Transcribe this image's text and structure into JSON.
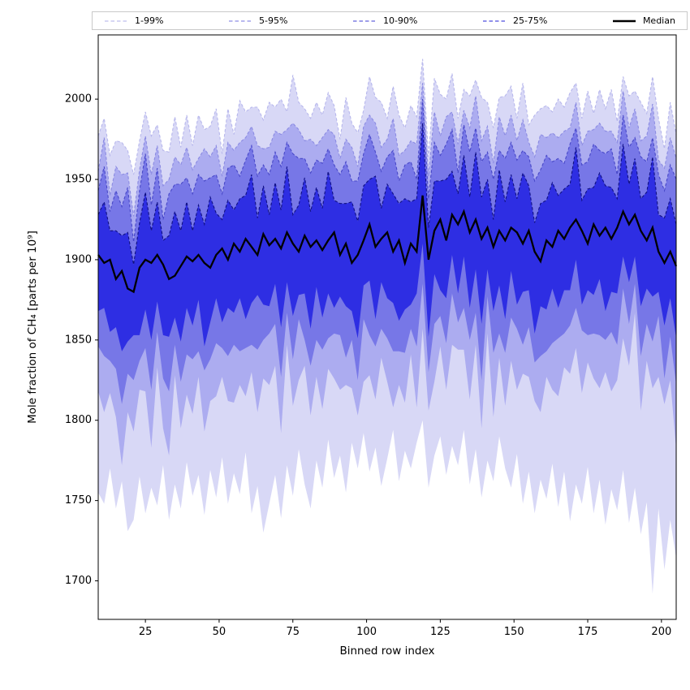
{
  "chart_data": {
    "type": "area",
    "title": "",
    "xlabel": "Binned row index",
    "ylabel": "Mole fraction of CH₄ [parts per 10⁹]",
    "xlim": [
      9,
      205
    ],
    "ylim": [
      1676,
      2040
    ],
    "xticks": [
      25,
      50,
      75,
      100,
      125,
      150,
      175,
      200
    ],
    "yticks": [
      1700,
      1750,
      1800,
      1850,
      1900,
      1950,
      2000
    ],
    "grid": false,
    "legend_position": "top",
    "x": [
      9,
      11,
      13,
      15,
      17,
      19,
      21,
      23,
      25,
      27,
      29,
      31,
      33,
      35,
      37,
      39,
      41,
      43,
      45,
      47,
      49,
      51,
      53,
      55,
      57,
      59,
      61,
      63,
      65,
      67,
      69,
      71,
      73,
      75,
      77,
      79,
      81,
      83,
      85,
      87,
      89,
      91,
      93,
      95,
      97,
      99,
      101,
      103,
      105,
      107,
      109,
      111,
      113,
      115,
      117,
      119,
      121,
      123,
      125,
      127,
      129,
      131,
      133,
      135,
      137,
      139,
      141,
      143,
      145,
      147,
      149,
      151,
      153,
      155,
      157,
      159,
      161,
      163,
      165,
      167,
      169,
      171,
      173,
      175,
      177,
      179,
      181,
      183,
      185,
      187,
      189,
      191,
      193,
      195,
      197,
      199,
      201,
      203,
      205
    ],
    "bands": [
      {
        "label": "1-99%",
        "lower": "p1",
        "upper": "p99",
        "fill": "#d8d8f6",
        "edge": "#b7b7ec",
        "legend_color": "#c8c8f0"
      },
      {
        "label": "5-95%",
        "lower": "p5",
        "upper": "p95",
        "fill": "#acacf0",
        "edge": "#8b8be2",
        "legend_color": "#a2a2ea"
      },
      {
        "label": "10-90%",
        "lower": "p10",
        "upper": "p90",
        "fill": "#7777e7",
        "edge": "#4848c8",
        "legend_color": "#7e7ee2"
      },
      {
        "label": "25-75%",
        "lower": "p25",
        "upper": "p75",
        "fill": "#2e2ee3",
        "edge": "#111183",
        "legend_color": "#6c6ce4"
      }
    ],
    "median_line": {
      "label": "Median",
      "series": "median",
      "color": "#000000",
      "linewidth": 2.3
    },
    "series": [
      {
        "name": "p1",
        "values": [
          1755,
          1748,
          1770,
          1745,
          1762,
          1731,
          1738,
          1765,
          1742,
          1758,
          1747,
          1772,
          1738,
          1760,
          1745,
          1774,
          1753,
          1766,
          1741,
          1769,
          1752,
          1777,
          1748,
          1767,
          1754,
          1780,
          1742,
          1759,
          1730,
          1748,
          1766,
          1739,
          1772,
          1753,
          1782,
          1760,
          1745,
          1775,
          1758,
          1788,
          1764,
          1778,
          1755,
          1786,
          1770,
          1792,
          1768,
          1783,
          1759,
          1776,
          1794,
          1762,
          1781,
          1770,
          1786,
          1800,
          1758,
          1778,
          1790,
          1766,
          1784,
          1772,
          1794,
          1760,
          1782,
          1752,
          1775,
          1762,
          1790,
          1770,
          1758,
          1779,
          1748,
          1768,
          1742,
          1763,
          1751,
          1773,
          1746,
          1768,
          1737,
          1760,
          1748,
          1771,
          1742,
          1763,
          1735,
          1757,
          1744,
          1769,
          1736,
          1758,
          1729,
          1749,
          1692,
          1745,
          1707,
          1738,
          1714
        ]
      },
      {
        "name": "p5",
        "values": [
          1818,
          1805,
          1817,
          1802,
          1772,
          1805,
          1793,
          1819,
          1818,
          1783,
          1833,
          1795,
          1778,
          1828,
          1795,
          1816,
          1804,
          1827,
          1793,
          1812,
          1815,
          1827,
          1812,
          1811,
          1822,
          1815,
          1830,
          1805,
          1826,
          1822,
          1834,
          1792,
          1847,
          1809,
          1825,
          1834,
          1803,
          1827,
          1807,
          1832,
          1826,
          1819,
          1822,
          1820,
          1803,
          1824,
          1828,
          1813,
          1839,
          1824,
          1808,
          1822,
          1811,
          1841,
          1808,
          1857,
          1806,
          1824,
          1846,
          1819,
          1847,
          1844,
          1844,
          1813,
          1847,
          1795,
          1854,
          1802,
          1839,
          1809,
          1837,
          1819,
          1829,
          1827,
          1812,
          1805,
          1827,
          1819,
          1815,
          1833,
          1829,
          1845,
          1817,
          1836,
          1826,
          1820,
          1830,
          1818,
          1825,
          1851,
          1834,
          1867,
          1806,
          1837,
          1820,
          1827,
          1810,
          1825,
          1782
        ]
      },
      {
        "name": "p10",
        "values": [
          1846,
          1840,
          1837,
          1832,
          1810,
          1829,
          1825,
          1837,
          1845,
          1819,
          1855,
          1826,
          1818,
          1847,
          1824,
          1841,
          1838,
          1843,
          1831,
          1838,
          1848,
          1845,
          1840,
          1847,
          1843,
          1845,
          1847,
          1844,
          1850,
          1854,
          1860,
          1827,
          1867,
          1838,
          1863,
          1850,
          1834,
          1850,
          1844,
          1851,
          1854,
          1853,
          1839,
          1850,
          1825,
          1863,
          1853,
          1846,
          1857,
          1851,
          1843,
          1843,
          1842,
          1857,
          1846,
          1885,
          1830,
          1860,
          1865,
          1848,
          1879,
          1861,
          1870,
          1850,
          1867,
          1825,
          1877,
          1842,
          1854,
          1842,
          1864,
          1857,
          1847,
          1858,
          1836,
          1840,
          1843,
          1848,
          1851,
          1854,
          1859,
          1870,
          1856,
          1853,
          1854,
          1853,
          1850,
          1855,
          1847,
          1882,
          1860,
          1885,
          1840,
          1860,
          1849,
          1865,
          1826,
          1852,
          1822
        ]
      },
      {
        "name": "p25",
        "values": [
          1868,
          1870,
          1855,
          1858,
          1843,
          1849,
          1853,
          1853,
          1869,
          1850,
          1874,
          1853,
          1852,
          1864,
          1849,
          1870,
          1859,
          1875,
          1846,
          1861,
          1876,
          1861,
          1870,
          1867,
          1876,
          1863,
          1873,
          1878,
          1872,
          1871,
          1885,
          1858,
          1886,
          1865,
          1878,
          1879,
          1857,
          1883,
          1864,
          1879,
          1870,
          1877,
          1871,
          1868,
          1851,
          1884,
          1887,
          1863,
          1886,
          1876,
          1873,
          1862,
          1869,
          1872,
          1879,
          1910,
          1852,
          1891,
          1881,
          1876,
          1903,
          1879,
          1902,
          1870,
          1894,
          1860,
          1894,
          1868,
          1884,
          1863,
          1893,
          1872,
          1880,
          1881,
          1854,
          1871,
          1869,
          1882,
          1870,
          1881,
          1881,
          1900,
          1872,
          1881,
          1878,
          1888,
          1868,
          1880,
          1879,
          1902,
          1886,
          1902,
          1871,
          1882,
          1877,
          1880,
          1859,
          1876,
          1851
        ]
      },
      {
        "name": "median",
        "values": [
          1903,
          1898,
          1900,
          1888,
          1893,
          1882,
          1880,
          1895,
          1900,
          1898,
          1903,
          1897,
          1888,
          1890,
          1896,
          1902,
          1899,
          1903,
          1898,
          1895,
          1903,
          1907,
          1900,
          1910,
          1905,
          1913,
          1908,
          1903,
          1916,
          1909,
          1913,
          1907,
          1917,
          1910,
          1905,
          1915,
          1908,
          1912,
          1906,
          1912,
          1917,
          1903,
          1910,
          1898,
          1903,
          1912,
          1922,
          1908,
          1913,
          1917,
          1905,
          1912,
          1898,
          1910,
          1905,
          1940,
          1900,
          1918,
          1925,
          1912,
          1928,
          1922,
          1930,
          1917,
          1925,
          1913,
          1920,
          1908,
          1918,
          1912,
          1920,
          1917,
          1910,
          1918,
          1905,
          1899,
          1912,
          1908,
          1918,
          1913,
          1920,
          1925,
          1918,
          1910,
          1922,
          1915,
          1920,
          1913,
          1920,
          1930,
          1922,
          1928,
          1918,
          1912,
          1920,
          1905,
          1898,
          1905,
          1896
        ]
      },
      {
        "name": "p75",
        "values": [
          1928,
          1936,
          1918,
          1918,
          1915,
          1917,
          1897,
          1923,
          1942,
          1918,
          1936,
          1912,
          1915,
          1930,
          1918,
          1936,
          1918,
          1934,
          1922,
          1939,
          1929,
          1925,
          1937,
          1931,
          1938,
          1940,
          1953,
          1926,
          1946,
          1928,
          1948,
          1931,
          1958,
          1928,
          1934,
          1951,
          1930,
          1945,
          1932,
          1955,
          1937,
          1935,
          1935,
          1936,
          1924,
          1946,
          1950,
          1952,
          1932,
          1947,
          1941,
          1935,
          1938,
          1936,
          1938,
          1985,
          1920,
          1949,
          1949,
          1950,
          1955,
          1941,
          1965,
          1939,
          1967,
          1939,
          1950,
          1925,
          1956,
          1936,
          1953,
          1938,
          1954,
          1946,
          1923,
          1935,
          1937,
          1948,
          1940,
          1944,
          1947,
          1970,
          1937,
          1944,
          1945,
          1954,
          1946,
          1945,
          1938,
          1972,
          1947,
          1963,
          1938,
          1942,
          1964,
          1928,
          1926,
          1938,
          1922
        ]
      },
      {
        "name": "p90",
        "values": [
          1943,
          1958,
          1930,
          1943,
          1933,
          1945,
          1911,
          1943,
          1966,
          1934,
          1957,
          1925,
          1941,
          1947,
          1947,
          1951,
          1941,
          1953,
          1949,
          1951,
          1953,
          1941,
          1957,
          1959,
          1952,
          1962,
          1971,
          1952,
          1959,
          1953,
          1967,
          1958,
          1973,
          1966,
          1963,
          1963,
          1954,
          1962,
          1960,
          1969,
          1959,
          1953,
          1961,
          1949,
          1949,
          1966,
          1978,
          1967,
          1955,
          1964,
          1968,
          1949,
          1959,
          1961,
          1950,
          2000,
          1938,
          1973,
          1965,
          1972,
          1981,
          1954,
          1984,
          1967,
          1982,
          1961,
          1967,
          1950,
          1968,
          1963,
          1973,
          1962,
          1968,
          1964,
          1949,
          1956,
          1965,
          1961,
          1963,
          1960,
          1972,
          1982,
          1959,
          1961,
          1972,
          1968,
          1966,
          1969,
          1953,
          1990,
          1970,
          1976,
          1964,
          1961,
          1976,
          1953,
          1943,
          1959,
          1950
        ]
      },
      {
        "name": "p95",
        "values": [
          1955,
          1976,
          1940,
          1958,
          1953,
          1954,
          1927,
          1956,
          1977,
          1953,
          1971,
          1946,
          1950,
          1964,
          1959,
          1970,
          1956,
          1963,
          1969,
          1964,
          1971,
          1952,
          1973,
          1968,
          1973,
          1976,
          1983,
          1971,
          1969,
          1970,
          1980,
          1978,
          1981,
          1985,
          1981,
          1974,
          1975,
          1971,
          1976,
          1981,
          1978,
          1963,
          1975,
          1970,
          1958,
          1983,
          1990,
          1985,
          1970,
          1975,
          1988,
          1965,
          1968,
          1974,
          1972,
          2010,
          1952,
          1992,
          1977,
          1989,
          1992,
          1972,
          1993,
          1982,
          2002,
          1974,
          1983,
          1960,
          1989,
          1977,
          1990,
          1974,
          1987,
          1973,
          1964,
          1978,
          1976,
          1979,
          1976,
          1980,
          1982,
          1998,
          1971,
          1980,
          1981,
          1985,
          1980,
          1980,
          1973,
          2005,
          1982,
          1994,
          1974,
          1977,
          1997,
          1962,
          1957,
          1976,
          1963
        ]
      },
      {
        "name": "p99",
        "values": [
          1977,
          1988,
          1965,
          1974,
          1973,
          1968,
          1953,
          1974,
          1992,
          1977,
          1984,
          1968,
          1967,
          1989,
          1970,
          1990,
          1971,
          1990,
          1981,
          1983,
          1994,
          1966,
          1994,
          1978,
          1999,
          1992,
          1995,
          1995,
          1987,
          1998,
          1995,
          2000,
          1992,
          2015,
          1998,
          1994,
          1988,
          1998,
          1990,
          2004,
          1996,
          1975,
          2001,
          1985,
          1979,
          1993,
          2014,
          2001,
          1998,
          1988,
          2008,
          1990,
          1982,
          1996,
          1989,
          2025,
          1964,
          2013,
          2003,
          2000,
          2016,
          1988,
          2006,
          2002,
          2012,
          2001,
          1998,
          1982,
          2001,
          2002,
          2008,
          1988,
          2010,
          1984,
          1990,
          1994,
          1996,
          1992,
          2000,
          1995,
          2004,
          2010,
          1988,
          2005,
          1991,
          2006,
          1994,
          2006,
          1986,
          2014,
          2002,
          2005,
          1998,
          1991,
          2014,
          1988,
          1969,
          1998,
          1978
        ]
      }
    ]
  }
}
